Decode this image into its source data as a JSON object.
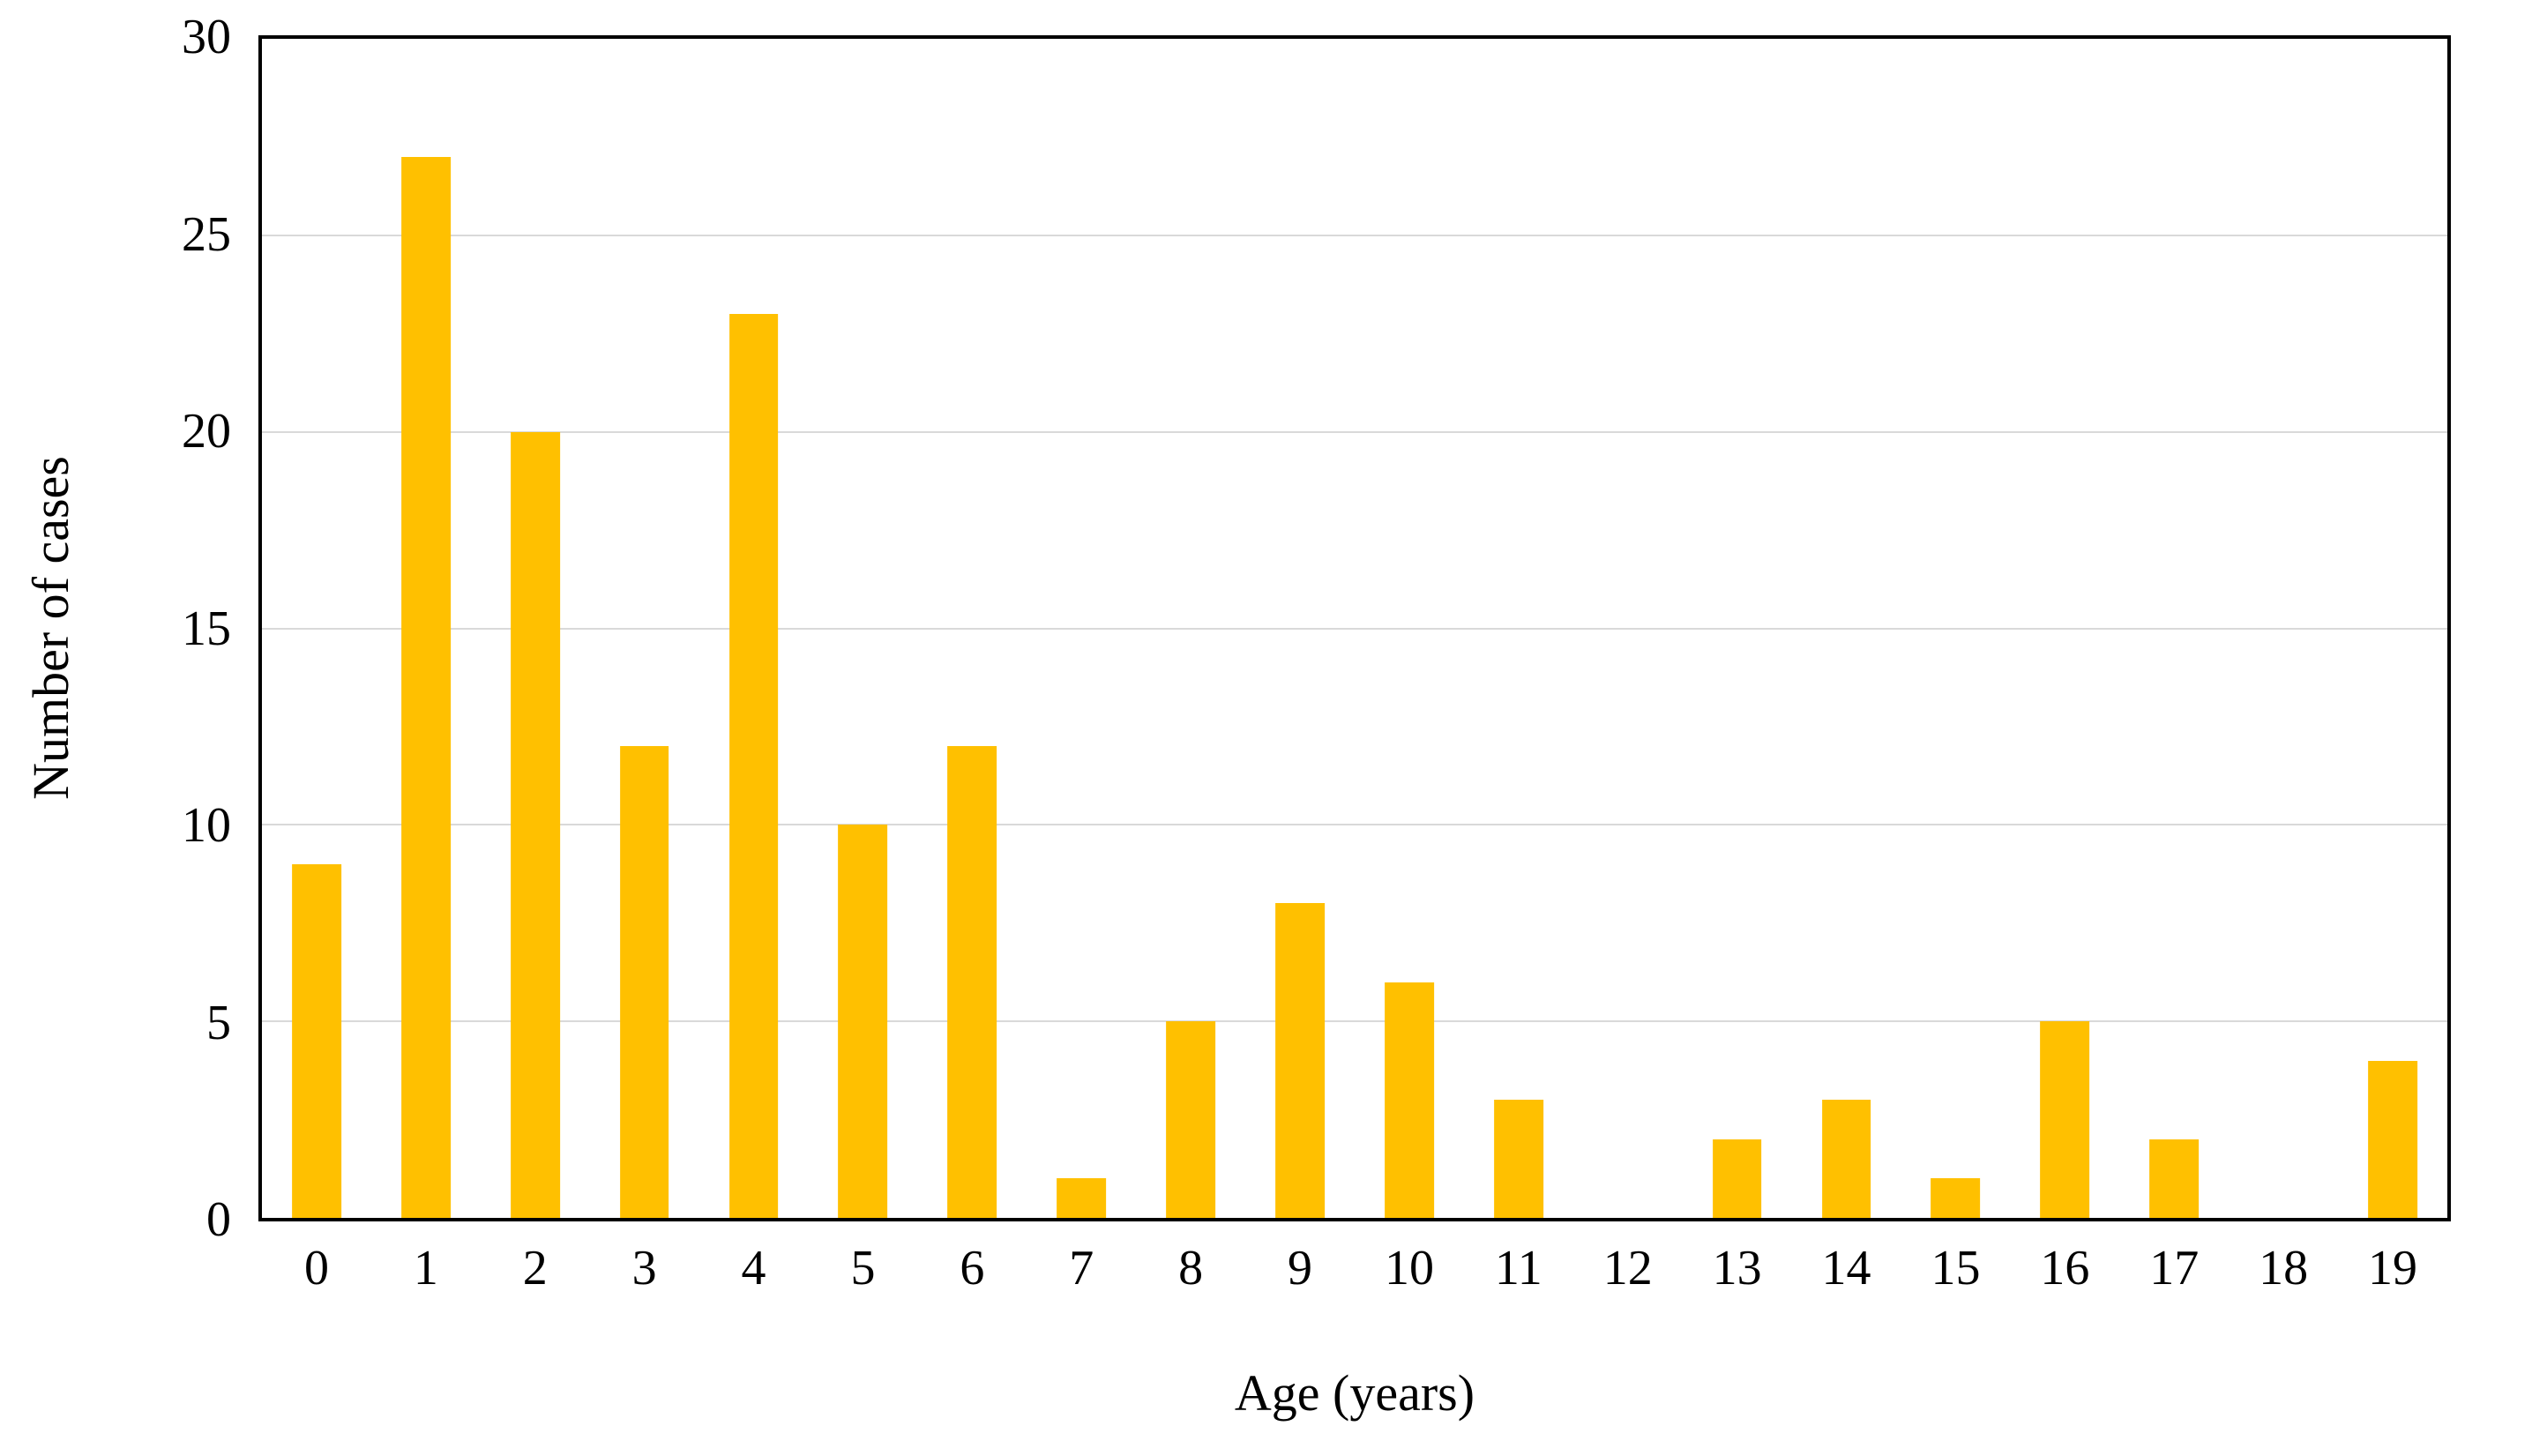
{
  "chart_data": {
    "type": "bar",
    "title": "",
    "xlabel": "Age (years)",
    "ylabel": "Number of cases",
    "categories": [
      "0",
      "1",
      "2",
      "3",
      "4",
      "5",
      "6",
      "7",
      "8",
      "9",
      "10",
      "11",
      "12",
      "13",
      "14",
      "15",
      "16",
      "17",
      "18",
      "19"
    ],
    "values": [
      9,
      27,
      20,
      12,
      23,
      10,
      12,
      1,
      5,
      8,
      6,
      3,
      0,
      2,
      3,
      1,
      5,
      2,
      0,
      4
    ],
    "ylim": [
      0,
      30
    ],
    "ytick_step": 5,
    "yticks": [
      0,
      5,
      10,
      15,
      20,
      25,
      30
    ],
    "grid": "horizontal-gridlines-on",
    "legend_position": "none",
    "bar_color": "#FFC000",
    "gridline_color": "#D9D9D9",
    "axis_border_color": "#000000",
    "text_color": "#000000",
    "background_color": "#FFFFFF"
  }
}
